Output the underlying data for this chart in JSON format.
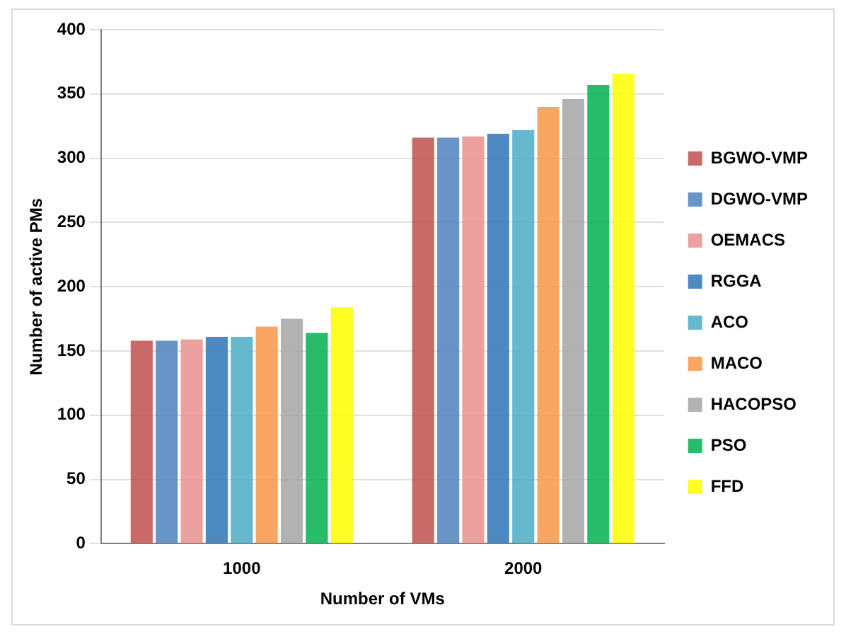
{
  "chart_data": {
    "type": "bar",
    "xlabel": "Number of VMs",
    "ylabel": "Number of active PMs",
    "categories": [
      "1000",
      "2000"
    ],
    "series": [
      {
        "name": "BGWO-VMP",
        "color": "#c0504d",
        "values": [
          158,
          316
        ]
      },
      {
        "name": "DGWO-VMP",
        "color": "#4f81bd",
        "values": [
          158,
          316
        ]
      },
      {
        "name": "OEMACS",
        "color": "#e6908e",
        "values": [
          159,
          317
        ]
      },
      {
        "name": "RGGA",
        "color": "#2e75b6",
        "values": [
          161,
          319
        ]
      },
      {
        "name": "ACO",
        "color": "#4bacc6",
        "values": [
          161,
          322
        ]
      },
      {
        "name": "MACO",
        "color": "#f79646",
        "values": [
          169,
          340
        ]
      },
      {
        "name": "HACOPSO",
        "color": "#a5a5a5",
        "values": [
          175,
          346
        ]
      },
      {
        "name": "PSO",
        "color": "#00b050",
        "values": [
          164,
          357
        ]
      },
      {
        "name": "FFD",
        "color": "#ffff00",
        "values": [
          184,
          366
        ]
      }
    ],
    "ylim": [
      0,
      400
    ],
    "yticks": [
      0,
      50,
      100,
      150,
      200,
      250,
      300,
      350,
      400
    ],
    "grid": "y",
    "legend": "right"
  }
}
